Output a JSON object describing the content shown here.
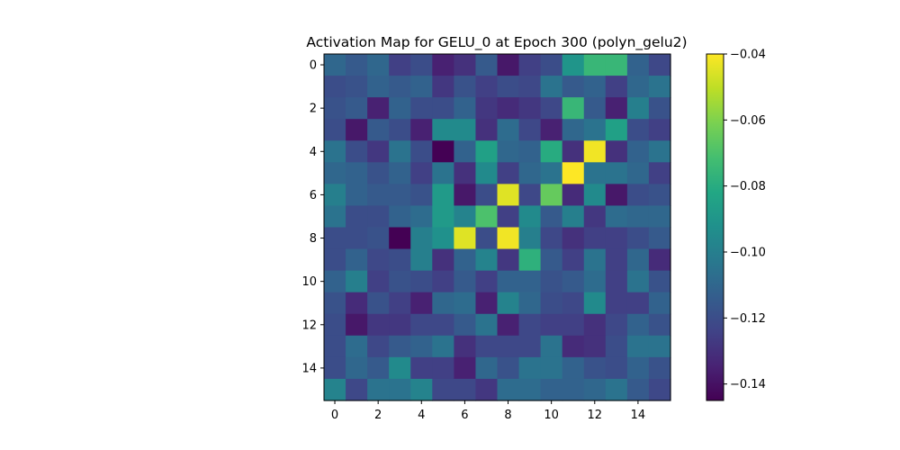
{
  "chart_data": {
    "type": "heatmap",
    "title": "Activation Map for GELU_0 at Epoch 300 (polyn_gelu2)",
    "xlabel": "",
    "ylabel": "",
    "rows": 16,
    "cols": 16,
    "x_ticks": [
      "0",
      "2",
      "4",
      "6",
      "8",
      "10",
      "12",
      "14"
    ],
    "y_ticks": [
      "0",
      "2",
      "4",
      "6",
      "8",
      "10",
      "12",
      "14"
    ],
    "colormap": "viridis",
    "vmin": -0.145,
    "vmax": -0.04,
    "colorbar_ticks": [
      -0.04,
      -0.06,
      -0.08,
      -0.1,
      -0.12,
      -0.14
    ],
    "colorbar_tick_labels": [
      "−0.04",
      "−0.06",
      "−0.08",
      "−0.10",
      "−0.12",
      "−0.14"
    ],
    "grid": false,
    "values": [
      [
        -0.11,
        -0.115,
        -0.11,
        -0.125,
        -0.12,
        -0.135,
        -0.13,
        -0.115,
        -0.138,
        -0.125,
        -0.12,
        -0.09,
        -0.075,
        -0.075,
        -0.112,
        -0.122
      ],
      [
        -0.12,
        -0.118,
        -0.112,
        -0.115,
        -0.112,
        -0.128,
        -0.118,
        -0.125,
        -0.12,
        -0.122,
        -0.105,
        -0.115,
        -0.112,
        -0.125,
        -0.11,
        -0.105
      ],
      [
        -0.118,
        -0.115,
        -0.135,
        -0.112,
        -0.12,
        -0.12,
        -0.112,
        -0.128,
        -0.132,
        -0.128,
        -0.122,
        -0.075,
        -0.115,
        -0.135,
        -0.1,
        -0.118
      ],
      [
        -0.12,
        -0.138,
        -0.115,
        -0.12,
        -0.135,
        -0.095,
        -0.095,
        -0.13,
        -0.108,
        -0.122,
        -0.135,
        -0.11,
        -0.105,
        -0.085,
        -0.12,
        -0.125
      ],
      [
        -0.105,
        -0.12,
        -0.128,
        -0.105,
        -0.12,
        -0.145,
        -0.112,
        -0.085,
        -0.11,
        -0.112,
        -0.08,
        -0.13,
        -0.042,
        -0.13,
        -0.112,
        -0.105
      ],
      [
        -0.11,
        -0.112,
        -0.118,
        -0.112,
        -0.125,
        -0.105,
        -0.13,
        -0.095,
        -0.125,
        -0.11,
        -0.105,
        -0.04,
        -0.105,
        -0.105,
        -0.11,
        -0.125
      ],
      [
        -0.1,
        -0.112,
        -0.115,
        -0.115,
        -0.118,
        -0.088,
        -0.138,
        -0.12,
        -0.045,
        -0.122,
        -0.065,
        -0.132,
        -0.095,
        -0.138,
        -0.12,
        -0.118
      ],
      [
        -0.105,
        -0.12,
        -0.12,
        -0.112,
        -0.108,
        -0.088,
        -0.098,
        -0.07,
        -0.125,
        -0.095,
        -0.115,
        -0.1,
        -0.128,
        -0.108,
        -0.11,
        -0.11
      ],
      [
        -0.12,
        -0.12,
        -0.118,
        -0.145,
        -0.1,
        -0.092,
        -0.045,
        -0.12,
        -0.042,
        -0.1,
        -0.122,
        -0.13,
        -0.125,
        -0.125,
        -0.12,
        -0.115
      ],
      [
        -0.12,
        -0.112,
        -0.122,
        -0.12,
        -0.1,
        -0.13,
        -0.112,
        -0.098,
        -0.128,
        -0.078,
        -0.115,
        -0.125,
        -0.105,
        -0.125,
        -0.11,
        -0.132
      ],
      [
        -0.112,
        -0.1,
        -0.125,
        -0.118,
        -0.12,
        -0.125,
        -0.115,
        -0.125,
        -0.112,
        -0.112,
        -0.118,
        -0.115,
        -0.108,
        -0.125,
        -0.105,
        -0.118
      ],
      [
        -0.118,
        -0.132,
        -0.118,
        -0.125,
        -0.135,
        -0.11,
        -0.108,
        -0.135,
        -0.098,
        -0.11,
        -0.12,
        -0.122,
        -0.095,
        -0.125,
        -0.125,
        -0.112
      ],
      [
        -0.12,
        -0.138,
        -0.128,
        -0.128,
        -0.122,
        -0.122,
        -0.115,
        -0.105,
        -0.135,
        -0.122,
        -0.125,
        -0.125,
        -0.13,
        -0.122,
        -0.112,
        -0.118
      ],
      [
        -0.12,
        -0.108,
        -0.122,
        -0.115,
        -0.112,
        -0.105,
        -0.13,
        -0.122,
        -0.122,
        -0.122,
        -0.105,
        -0.132,
        -0.13,
        -0.12,
        -0.105,
        -0.105
      ],
      [
        -0.12,
        -0.11,
        -0.115,
        -0.095,
        -0.125,
        -0.125,
        -0.135,
        -0.11,
        -0.118,
        -0.105,
        -0.105,
        -0.112,
        -0.118,
        -0.12,
        -0.112,
        -0.118
      ],
      [
        -0.098,
        -0.122,
        -0.105,
        -0.105,
        -0.098,
        -0.122,
        -0.122,
        -0.128,
        -0.108,
        -0.108,
        -0.112,
        -0.112,
        -0.11,
        -0.105,
        -0.115,
        -0.122
      ]
    ]
  }
}
